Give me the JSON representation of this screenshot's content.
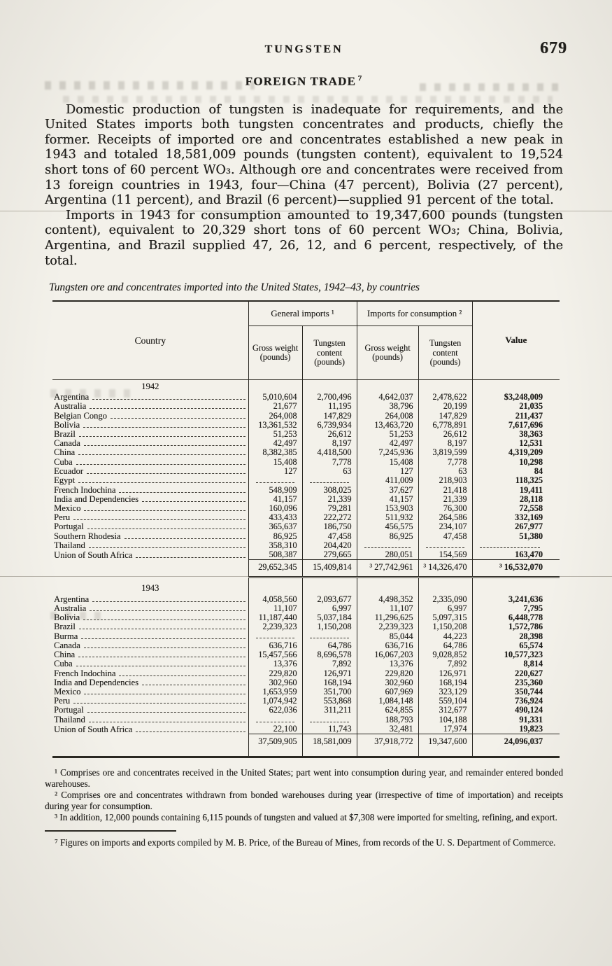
{
  "page": {
    "running_title": "TUNGSTEN",
    "page_number": "679"
  },
  "section": {
    "title": "FOREIGN TRADE",
    "footnote_marker": "7"
  },
  "paragraphs": {
    "p1": "Domestic production of tungsten is inadequate for requirements, and the United States imports both tungsten concentrates and products, chiefly the former.  Receipts of imported ore and concentrates established a new peak in 1943 and totaled 18,581,009 pounds (tungsten content), equivalent to 19,524 short tons of 60 percent WO₃. Although ore and concentrates were received from 13 foreign countries in 1943, four—China (47 percent), Bolivia (27 percent), Argentina (11 percent), and Brazil (6 percent)—supplied 91 percent of the total.",
    "p2": "Imports in 1943 for consumption amounted to 19,347,600 pounds (tungsten content), equivalent to 20,329 short tons of 60 percent WO₃; China, Bolivia, Argentina, and Brazil supplied 47, 26, 12, and 6 percent, respectively, of the total."
  },
  "table": {
    "caption": "Tungsten ore and concentrates imported into the United States, 1942–43, by countries",
    "column_groups": {
      "general": "General imports ¹",
      "consumption": "Imports for consumption ²"
    },
    "headers": {
      "country": "Country",
      "gross_weight": "Gross weight (pounds)",
      "tungsten_content": "Tungsten content (pounds)",
      "value": "Value"
    },
    "sections": [
      {
        "year": "1942",
        "rows": [
          {
            "country": "Argentina",
            "cells": [
              "5,010,604",
              "2,700,496",
              "4,642,037",
              "2,478,622",
              "$3,248,009"
            ]
          },
          {
            "country": "Australia",
            "cells": [
              "21,677",
              "11,195",
              "38,796",
              "20,199",
              "21,035"
            ]
          },
          {
            "country": "Belgian Congo",
            "cells": [
              "264,008",
              "147,829",
              "264,008",
              "147,829",
              "211,437"
            ]
          },
          {
            "country": "Bolivia",
            "cells": [
              "13,361,532",
              "6,739,934",
              "13,463,720",
              "6,778,891",
              "7,617,696"
            ]
          },
          {
            "country": "Brazil",
            "cells": [
              "51,253",
              "26,612",
              "51,253",
              "26,612",
              "38,363"
            ]
          },
          {
            "country": "Canada",
            "cells": [
              "42,497",
              "8,197",
              "42,497",
              "8,197",
              "12,531"
            ]
          },
          {
            "country": "China",
            "cells": [
              "8,382,385",
              "4,418,500",
              "7,245,936",
              "3,819,599",
              "4,319,209"
            ]
          },
          {
            "country": "Cuba",
            "cells": [
              "15,408",
              "7,778",
              "15,408",
              "7,778",
              "10,298"
            ]
          },
          {
            "country": "Ecuador",
            "cells": [
              "127",
              "63",
              "127",
              "63",
              "84"
            ]
          },
          {
            "country": "Egypt",
            "cells": [
              "",
              "",
              "411,009",
              "218,903",
              "118,325"
            ]
          },
          {
            "country": "French Indochina",
            "cells": [
              "548,909",
              "308,025",
              "37,627",
              "21,418",
              "19,411"
            ]
          },
          {
            "country": "India and Dependencies",
            "cells": [
              "41,157",
              "21,339",
              "41,157",
              "21,339",
              "28,118"
            ]
          },
          {
            "country": "Mexico",
            "cells": [
              "160,096",
              "79,281",
              "153,903",
              "76,300",
              "72,558"
            ]
          },
          {
            "country": "Peru",
            "cells": [
              "433,433",
              "222,272",
              "511,932",
              "264,586",
              "332,169"
            ]
          },
          {
            "country": "Portugal",
            "cells": [
              "365,637",
              "186,750",
              "456,575",
              "234,107",
              "267,977"
            ]
          },
          {
            "country": "Southern Rhodesia",
            "cells": [
              "86,925",
              "47,458",
              "86,925",
              "47,458",
              "51,380"
            ]
          },
          {
            "country": "Thailand",
            "cells": [
              "358,310",
              "204,420",
              "",
              "",
              ""
            ]
          },
          {
            "country": "Union of South Africa",
            "cells": [
              "508,387",
              "279,665",
              "280,051",
              "154,569",
              "163,470"
            ]
          }
        ],
        "total": [
          "29,652,345",
          "15,409,814",
          "³ 27,742,961",
          "³ 14,326,470",
          "³ 16,532,070"
        ],
        "total_style": "mid"
      },
      {
        "year": "1943",
        "rows": [
          {
            "country": "Argentina",
            "cells": [
              "4,058,560",
              "2,093,677",
              "4,498,352",
              "2,335,090",
              "3,241,636"
            ]
          },
          {
            "country": "Australia",
            "cells": [
              "11,107",
              "6,997",
              "11,107",
              "6,997",
              "7,795"
            ]
          },
          {
            "country": "Bolivia",
            "cells": [
              "11,187,440",
              "5,037,184",
              "11,296,625",
              "5,097,315",
              "6,448,778"
            ]
          },
          {
            "country": "Brazil",
            "cells": [
              "2,239,323",
              "1,150,208",
              "2,239,323",
              "1,150,208",
              "1,572,786"
            ]
          },
          {
            "country": "Burma",
            "cells": [
              "",
              "",
              "85,044",
              "44,223",
              "28,398"
            ]
          },
          {
            "country": "Canada",
            "cells": [
              "636,716",
              "64,786",
              "636,716",
              "64,786",
              "65,574"
            ]
          },
          {
            "country": "China",
            "cells": [
              "15,457,566",
              "8,696,578",
              "16,067,203",
              "9,028,852",
              "10,577,323"
            ]
          },
          {
            "country": "Cuba",
            "cells": [
              "13,376",
              "7,892",
              "13,376",
              "7,892",
              "8,814"
            ]
          },
          {
            "country": "French Indochina",
            "cells": [
              "229,820",
              "126,971",
              "229,820",
              "126,971",
              "220,627"
            ]
          },
          {
            "country": "India and Dependencies",
            "cells": [
              "302,960",
              "168,194",
              "302,960",
              "168,194",
              "235,360"
            ]
          },
          {
            "country": "Mexico",
            "cells": [
              "1,653,959",
              "351,700",
              "607,969",
              "323,129",
              "350,744"
            ]
          },
          {
            "country": "Peru",
            "cells": [
              "1,074,942",
              "553,868",
              "1,084,148",
              "559,104",
              "736,924"
            ]
          },
          {
            "country": "Portugal",
            "cells": [
              "622,036",
              "311,211",
              "624,855",
              "312,677",
              "490,124"
            ]
          },
          {
            "country": "Thailand",
            "cells": [
              "",
              "",
              "188,793",
              "104,188",
              "91,331"
            ]
          },
          {
            "country": "Union of South Africa",
            "cells": [
              "22,100",
              "11,743",
              "32,481",
              "17,974",
              "19,823"
            ]
          }
        ],
        "total": [
          "37,509,905",
          "18,581,009",
          "37,918,772",
          "19,347,600",
          "24,096,037"
        ],
        "total_style": "grand"
      }
    ]
  },
  "footnotes": {
    "items": [
      "¹ Comprises ore and concentrates received in the United States; part went into consumption during year, and remainder entered bonded warehouses.",
      "² Comprises ore and concentrates withdrawn from bonded warehouses during year (irrespective of time of importation) and receipts during year for consumption.",
      "³ In addition, 12,000 pounds containing 6,115 pounds of tungsten and valued at $7,308 were imported for smelting, refining, and export."
    ],
    "source": "⁷ Figures on imports and exports compiled by M. B. Price, of the Bureau of Mines, from records of the U. S. Department of Commerce."
  }
}
